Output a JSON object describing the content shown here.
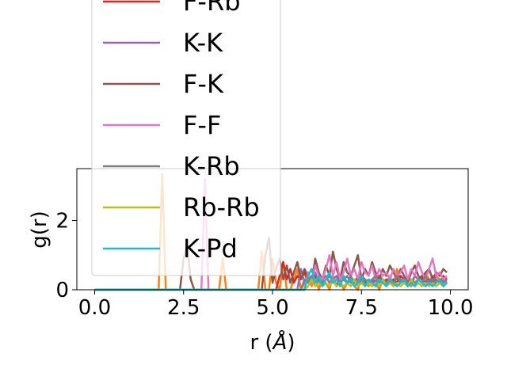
{
  "chart_data": {
    "type": "line",
    "title": "",
    "xlabel": "r (",
    "xlabel_symbol": "Å",
    "xlabel_close": ")",
    "ylabel": "g(r)",
    "xlim": [
      -0.5,
      10.5
    ],
    "ylim": [
      0,
      3.5
    ],
    "xticks": [
      0.0,
      2.5,
      5.0,
      7.5,
      10.0
    ],
    "xtick_labels": [
      "0.0",
      "2.5",
      "5.0",
      "7.5",
      "10.0"
    ],
    "yticks": [
      0,
      2
    ],
    "ytick_labels": [
      "0",
      "2"
    ],
    "grid": false,
    "legend_placement": "upper-left, overlapping plot",
    "x": [
      0.0,
      0.1,
      0.2,
      0.3,
      0.4,
      0.5,
      0.6,
      0.7,
      0.8,
      0.9,
      1.0,
      1.1,
      1.2,
      1.3,
      1.4,
      1.5,
      1.6,
      1.7,
      1.8,
      1.9,
      2.0,
      2.1,
      2.2,
      2.3,
      2.4,
      2.5,
      2.6,
      2.7,
      2.8,
      2.9,
      3.0,
      3.1,
      3.2,
      3.3,
      3.4,
      3.5,
      3.6,
      3.7,
      3.8,
      3.9,
      4.0,
      4.1,
      4.2,
      4.3,
      4.4,
      4.5,
      4.6,
      4.7,
      4.8,
      4.9,
      5.0,
      5.1,
      5.2,
      5.3,
      5.4,
      5.5,
      5.6,
      5.7,
      5.8,
      5.9,
      6.0,
      6.1,
      6.2,
      6.3,
      6.4,
      6.5,
      6.6,
      6.7,
      6.8,
      6.9,
      7.0,
      7.1,
      7.2,
      7.3,
      7.4,
      7.5,
      7.6,
      7.7,
      7.8,
      7.9,
      8.0,
      8.1,
      8.2,
      8.3,
      8.4,
      8.5,
      8.6,
      8.7,
      8.8,
      8.9,
      9.0,
      9.1,
      9.2,
      9.3,
      9.4,
      9.5,
      9.6,
      9.7,
      9.8,
      9.9
    ],
    "series": [
      {
        "name": "",
        "color": "#ff7f0e",
        "values": [
          0,
          0,
          0,
          0,
          0,
          0,
          0,
          0,
          0,
          0,
          0,
          0,
          0,
          0,
          0,
          0,
          0,
          0,
          0,
          3.35,
          0,
          0,
          0,
          0,
          0,
          0,
          0,
          0,
          0,
          0,
          0,
          0,
          0,
          0,
          0,
          0,
          0.9,
          0,
          0,
          0,
          0,
          0,
          0,
          0,
          0,
          0,
          0,
          1.1,
          0,
          0,
          0.9,
          0.2,
          0,
          0.8,
          0,
          0,
          0.3,
          0.6,
          0,
          0.2,
          0.4,
          0.1,
          0.5,
          0,
          0.3,
          0.2,
          0,
          0.4,
          0.1,
          0.3,
          0,
          0.2,
          0.3,
          0.1,
          0,
          0.4,
          0.2,
          0.1,
          0.3,
          0.2,
          0,
          0.3,
          0.2,
          0.4,
          0.1,
          0.6,
          0.2,
          0.3,
          0.2,
          0.1,
          0.4,
          0.3,
          0.2,
          0.5,
          0.3,
          0.2,
          0.4,
          0.3,
          0.2,
          0.3
        ]
      },
      {
        "name": "F-Rb",
        "color": "#d62728",
        "values": [
          0,
          0,
          0,
          0,
          0,
          0,
          0,
          0,
          0,
          0,
          0,
          0,
          0,
          0,
          0,
          0,
          0,
          0,
          0,
          0,
          0,
          0,
          0,
          0,
          0,
          0,
          0,
          0,
          0,
          0,
          0,
          0,
          0,
          0,
          0,
          0,
          0,
          0,
          0,
          0,
          0,
          0,
          0,
          0,
          0,
          0,
          0,
          0,
          0,
          0,
          0,
          0,
          0.4,
          0.8,
          0.3,
          0.6,
          0.2,
          0.4,
          0.3,
          0.5,
          0.2,
          0.3,
          0.4,
          0.2,
          0.3,
          0.4,
          0.2,
          0.3,
          0.1,
          0.4,
          0.3,
          0.2,
          0.3,
          0.2,
          0.4,
          0.3,
          0.2,
          0.3,
          0.2,
          0.3,
          0.4,
          0.2,
          0.3,
          0.2,
          0.3,
          0.2,
          0.4,
          0.3,
          0.2,
          0.3,
          0.2,
          0.3,
          0.4,
          0.2,
          0.3,
          0.2,
          0.3,
          0.2,
          0.4,
          0.3
        ]
      },
      {
        "name": "K-K",
        "color": "#9467bd",
        "values": [
          0,
          0,
          0,
          0,
          0,
          0,
          0,
          0,
          0,
          0,
          0,
          0,
          0,
          0,
          0,
          0,
          0,
          0,
          0,
          0,
          0,
          0,
          0,
          0,
          0,
          0,
          0,
          0,
          0,
          0,
          0,
          0,
          0,
          0,
          0,
          0,
          0,
          0,
          0,
          0,
          0,
          0,
          0,
          0,
          0,
          0,
          0,
          0,
          0,
          0,
          0,
          0,
          0,
          0,
          0,
          0,
          0,
          0,
          0.6,
          0.2,
          0.4,
          0.3,
          0.5,
          0.2,
          0.3,
          0.4,
          0.2,
          0.3,
          0.4,
          0.2,
          0.3,
          0.4,
          0.2,
          0.3,
          0.2,
          0.4,
          0.3,
          0.2,
          0.3,
          0.2,
          0.4,
          0.3,
          0.2,
          0.3,
          0.2,
          0.4,
          0.3,
          0.2,
          0.3,
          0.2,
          0.4,
          0.3,
          0.2,
          0.3,
          0.2,
          0.4,
          0.3,
          0.2,
          0.3,
          0.2
        ]
      },
      {
        "name": "F-K",
        "color": "#8c564b",
        "values": [
          0,
          0,
          0,
          0,
          0,
          0,
          0,
          0,
          0,
          0,
          0,
          0,
          0,
          0,
          0,
          0,
          0,
          0,
          0,
          0,
          0,
          0,
          0,
          0,
          0,
          0.9,
          1.3,
          0.3,
          0,
          0,
          0,
          0,
          0,
          0,
          0,
          0,
          0,
          0,
          0,
          0,
          0,
          0,
          0,
          0,
          0,
          0,
          0,
          0,
          1.0,
          1.5,
          0.2,
          0.6,
          0.9,
          0.3,
          0.7,
          0.2,
          0.5,
          0.8,
          0.3,
          0.6,
          0.4,
          0.2,
          0.9,
          0.5,
          0.3,
          0.7,
          0.4,
          1.1,
          0.6,
          0.3,
          0.8,
          0.5,
          0.4,
          0.7,
          1.0,
          0.3,
          0.6,
          0.4,
          0.8,
          0.5,
          0.3,
          0.6,
          0.4,
          0.7,
          0.5,
          0.3,
          0.6,
          0.4,
          0.2,
          0.5,
          0.7,
          0.4,
          0.3,
          0.5,
          0.6,
          0.3,
          0.5,
          0.4,
          0.6,
          0.5
        ]
      },
      {
        "name": "F-F",
        "color": "#e377c2",
        "values": [
          0,
          0,
          0,
          0,
          0,
          0,
          0,
          0,
          0,
          0,
          0,
          0,
          0,
          0,
          0,
          0,
          0,
          0,
          0,
          0,
          0,
          0,
          0,
          0,
          0,
          0,
          0,
          0,
          0,
          0,
          0,
          3.2,
          0,
          0,
          0,
          0,
          0,
          0,
          0,
          0,
          0,
          0,
          0,
          0,
          0,
          0,
          0,
          0,
          0,
          0,
          0,
          0,
          0,
          0,
          0,
          0,
          0,
          0,
          0,
          0,
          0.5,
          0.2,
          0.7,
          0.4,
          0.3,
          0.6,
          1.0,
          0.4,
          0.8,
          0.3,
          0.5,
          0.9,
          0.4,
          0.6,
          0.3,
          0.8,
          0.5,
          0.4,
          0.7,
          0.3,
          0.6,
          0.4,
          0.5,
          0.3,
          0.6,
          0.4,
          0.5,
          0.7,
          0.3,
          0.6,
          0.4,
          0.8,
          0.5,
          0.3,
          0.6,
          0.9,
          0.4,
          0.5,
          0.3,
          0.4
        ]
      },
      {
        "name": "K-Rb",
        "color": "#7f7f7f",
        "values": [
          0,
          0,
          0,
          0,
          0,
          0,
          0,
          0,
          0,
          0,
          0,
          0,
          0,
          0,
          0,
          0,
          0,
          0,
          0,
          0,
          0,
          0,
          0,
          0,
          0,
          0,
          0,
          0,
          0,
          0,
          0,
          0,
          0,
          0,
          0,
          0,
          0,
          0,
          0,
          0,
          0,
          0,
          0,
          0,
          0,
          0,
          0,
          0,
          0,
          0,
          0,
          0,
          0,
          0,
          0,
          0,
          0,
          0,
          0,
          0.3,
          0.2,
          0.4,
          0.2,
          0.3,
          0.2,
          0.3,
          0.4,
          0.2,
          0.3,
          0.2,
          0.3,
          0.2,
          0.4,
          0.2,
          0.3,
          0.2,
          0.3,
          0.2,
          0.3,
          0.4,
          0.2,
          0.3,
          0.2,
          0.3,
          0.2,
          0.4,
          0.2,
          0.3,
          0.2,
          0.3,
          0.2,
          0.3,
          0.2,
          0.4,
          0.2,
          0.3,
          0.2,
          0.3,
          0.2,
          0.3
        ]
      },
      {
        "name": "Rb-Rb",
        "color": "#bcbd22",
        "values": [
          0,
          0,
          0,
          0,
          0,
          0,
          0,
          0,
          0,
          0,
          0,
          0,
          0,
          0,
          0,
          0,
          0,
          0,
          0,
          0,
          0,
          0,
          0,
          0,
          0,
          0,
          0,
          0,
          0,
          0,
          0,
          0,
          0,
          0,
          0,
          0,
          0,
          0,
          0,
          0,
          0,
          0,
          0,
          0,
          0,
          0,
          0,
          0,
          0,
          0,
          0,
          0,
          0,
          0,
          0,
          0,
          0,
          0,
          0,
          0,
          0.1,
          0.3,
          0.1,
          0.2,
          0.1,
          0.2,
          0.1,
          0.3,
          0.1,
          0.2,
          0.1,
          0.2,
          0.1,
          0.3,
          0.1,
          0.2,
          0.1,
          0.2,
          0.1,
          0.2,
          0.1,
          0.3,
          0.1,
          0.2,
          0.1,
          0.2,
          0.1,
          0.2,
          0.1,
          0.3,
          0.1,
          0.2,
          0.1,
          0.2,
          0.1,
          0.2,
          0.1,
          0.2,
          0.1,
          0.2
        ]
      },
      {
        "name": "K-Pd",
        "color": "#17becf",
        "values": [
          0,
          0,
          0,
          0,
          0,
          0,
          0,
          0,
          0,
          0,
          0,
          0,
          0,
          0,
          0,
          0,
          0,
          0,
          0,
          0,
          0,
          0,
          0,
          0,
          0,
          0,
          0,
          0,
          0,
          0,
          0,
          0,
          0,
          0,
          0,
          0,
          0,
          0,
          0,
          0,
          0,
          0,
          0,
          0,
          0,
          0,
          0,
          0,
          0,
          0,
          0,
          0,
          0,
          0,
          0,
          0,
          0,
          0,
          0,
          0,
          0.4,
          0.6,
          0.2,
          0.4,
          0.1,
          0.3,
          0.5,
          0.2,
          0.3,
          0.1,
          0.4,
          0.2,
          0.3,
          0.1,
          0.2,
          0.4,
          0.1,
          0.3,
          0.2,
          0.1,
          0.3,
          0.2,
          0.1,
          0.3,
          0.2,
          0.1,
          0.2,
          0.3,
          0.1,
          0.2,
          0.1,
          0.3,
          0.2,
          0.1,
          0.2,
          0.1,
          0.2,
          0.3,
          0.1,
          0.2
        ]
      }
    ]
  }
}
